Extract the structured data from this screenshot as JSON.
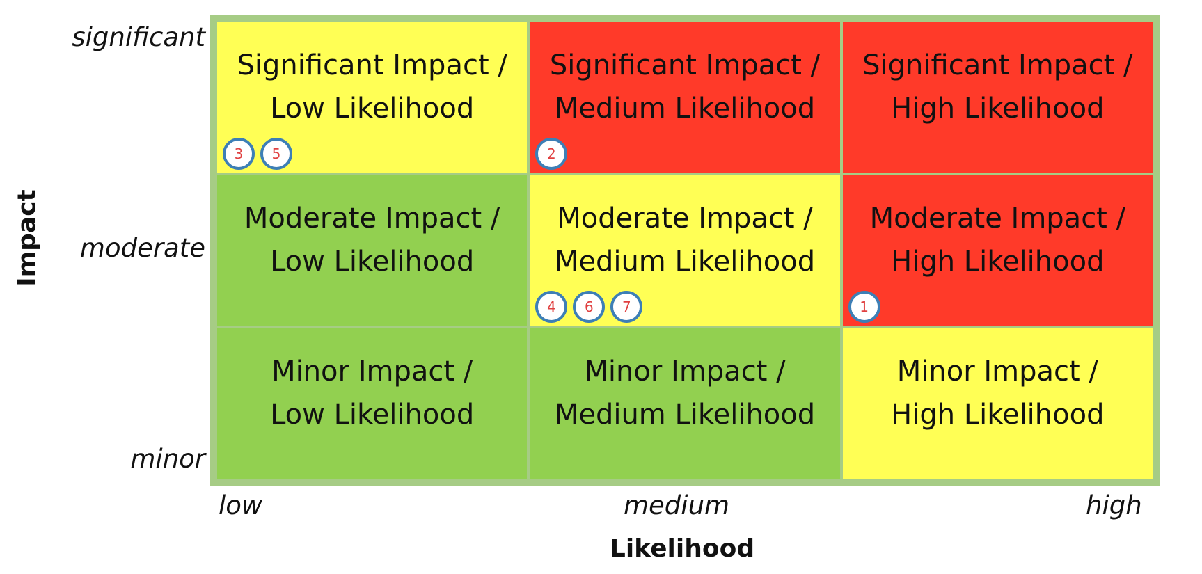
{
  "y_axis": {
    "title": "Impact",
    "ticks": [
      "significant",
      "moderate",
      "minor"
    ]
  },
  "x_axis": {
    "title": "Likelihood",
    "ticks": [
      "low",
      "medium",
      "high"
    ]
  },
  "colors": {
    "low_risk": "#92d050",
    "medium_risk": "#ffff55",
    "high_risk": "#ff3a29",
    "grid_border": "#a6cc85",
    "marker_border": "#3d7fb6",
    "marker_text": "#e04040"
  },
  "cells": [
    {
      "line1": "Significant Impact /",
      "line2": "Low Likelihood",
      "color": "yellow",
      "markers": [
        "3",
        "5"
      ]
    },
    {
      "line1": "Significant Impact /",
      "line2": "Medium Likelihood",
      "color": "red",
      "markers": [
        "2"
      ]
    },
    {
      "line1": "Significant Impact /",
      "line2": "High Likelihood",
      "color": "red",
      "markers": []
    },
    {
      "line1": "Moderate Impact /",
      "line2": "Low Likelihood",
      "color": "green",
      "markers": []
    },
    {
      "line1": "Moderate Impact /",
      "line2": "Medium Likelihood",
      "color": "yellow",
      "markers": [
        "4",
        "6",
        "7"
      ]
    },
    {
      "line1": "Moderate Impact /",
      "line2": "High Likelihood",
      "color": "red",
      "markers": [
        "1"
      ]
    },
    {
      "line1": "Minor Impact /",
      "line2": "Low Likelihood",
      "color": "green",
      "markers": []
    },
    {
      "line1": "Minor Impact /",
      "line2": "Medium Likelihood",
      "color": "green",
      "markers": []
    },
    {
      "line1": "Minor Impact /",
      "line2": "High Likelihood",
      "color": "yellow",
      "markers": []
    }
  ]
}
